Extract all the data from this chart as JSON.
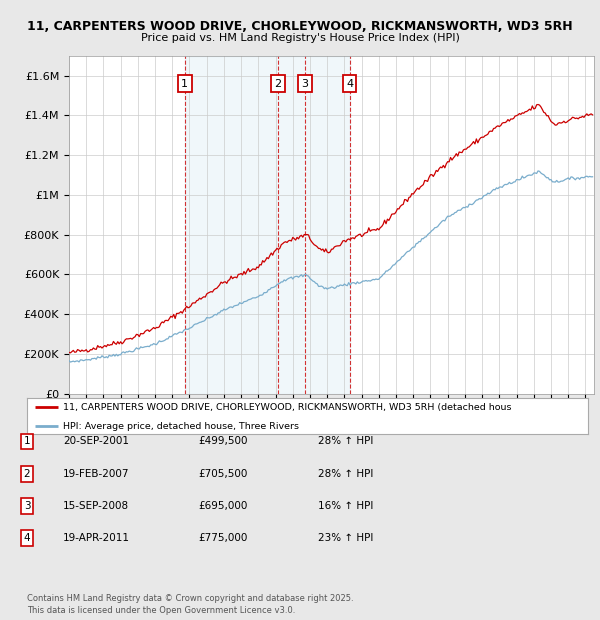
{
  "title_line1": "11, CARPENTERS WOOD DRIVE, CHORLEYWOOD, RICKMANSWORTH, WD3 5RH",
  "title_line2": "Price paid vs. HM Land Registry's House Price Index (HPI)",
  "ylim": [
    0,
    1700000
  ],
  "yticks": [
    0,
    200000,
    400000,
    600000,
    800000,
    1000000,
    1200000,
    1400000,
    1600000
  ],
  "ytick_labels": [
    "£0",
    "£200K",
    "£400K",
    "£600K",
    "£800K",
    "£1M",
    "£1.2M",
    "£1.4M",
    "£1.6M"
  ],
  "bg_color": "#e8e8e8",
  "plot_bg_color": "#ffffff",
  "red_line_color": "#cc0000",
  "blue_line_color": "#7aadcc",
  "grid_color": "#cccccc",
  "sale_markers": [
    {
      "label": "1",
      "year": 2001.72,
      "price": 499500,
      "date": "20-SEP-2001",
      "pct": "28%",
      "dir": "↑"
    },
    {
      "label": "2",
      "year": 2007.13,
      "price": 705500,
      "date": "19-FEB-2007",
      "pct": "28%",
      "dir": "↑"
    },
    {
      "label": "3",
      "year": 2008.71,
      "price": 695000,
      "date": "15-SEP-2008",
      "pct": "16%",
      "dir": "↑"
    },
    {
      "label": "4",
      "year": 2011.3,
      "price": 775000,
      "date": "19-APR-2011",
      "pct": "23%",
      "dir": "↑"
    }
  ],
  "legend_line1": "11, CARPENTERS WOOD DRIVE, CHORLEYWOOD, RICKMANSWORTH, WD3 5RH (detached hous",
  "legend_line2": "HPI: Average price, detached house, Three Rivers",
  "table_rows": [
    {
      "num": "1",
      "date": "20-SEP-2001",
      "price": "£499,500",
      "pct": "28% ↑ HPI"
    },
    {
      "num": "2",
      "date": "19-FEB-2007",
      "price": "£705,500",
      "pct": "28% ↑ HPI"
    },
    {
      "num": "3",
      "date": "15-SEP-2008",
      "price": "£695,000",
      "pct": "16% ↑ HPI"
    },
    {
      "num": "4",
      "date": "19-APR-2011",
      "price": "£775,000",
      "pct": "23% ↑ HPI"
    }
  ],
  "footer": "Contains HM Land Registry data © Crown copyright and database right 2025.\nThis data is licensed under the Open Government Licence v3.0.",
  "xmin": 1995,
  "xmax": 2025.5
}
